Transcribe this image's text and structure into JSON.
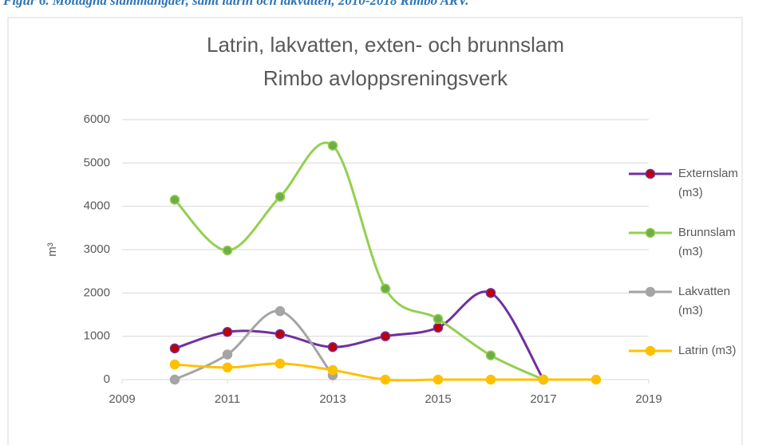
{
  "caption": "Figur 6. Mottagna slammängder, samt latrin och lakvatten, 2010-2018 Rimbo ARV.",
  "chart_data": {
    "type": "line",
    "title": "Latrin, lakvatten, exten- och brunnslam",
    "subtitle": "Rimbo avloppsreningsverk",
    "y_label": "m³",
    "x": [
      2010,
      2011,
      2012,
      2013,
      2014,
      2015,
      2016,
      2017,
      2018
    ],
    "series": [
      {
        "name": "Externslam (m3)",
        "color": "#7030a0",
        "marker_fill": "#c00000",
        "values": [
          720,
          1100,
          1050,
          750,
          1000,
          1200,
          2000,
          0,
          null
        ]
      },
      {
        "name": "Brunnslam (m3)",
        "color": "#92d050",
        "marker_fill": "#70ad47",
        "values": [
          4150,
          2980,
          4220,
          5400,
          2100,
          1400,
          560,
          0,
          null
        ]
      },
      {
        "name": "Lakvatten (m3)",
        "color": "#a5a5a5",
        "marker_fill": "#a5a5a5",
        "values": [
          0,
          580,
          1580,
          100,
          null,
          null,
          null,
          null,
          null
        ]
      },
      {
        "name": "Latrin (m3)",
        "color": "#ffc000",
        "marker_fill": "#ffc000",
        "values": [
          350,
          280,
          370,
          220,
          0,
          0,
          0,
          0,
          0
        ]
      }
    ],
    "xlim": [
      2009,
      2019
    ],
    "xticks": [
      2009,
      2011,
      2013,
      2015,
      2017,
      2019
    ],
    "ylim": [
      0,
      6000
    ],
    "yticks": [
      0,
      1000,
      2000,
      3000,
      4000,
      5000,
      6000
    ],
    "grid": true,
    "legend": "right",
    "smooth": true
  }
}
